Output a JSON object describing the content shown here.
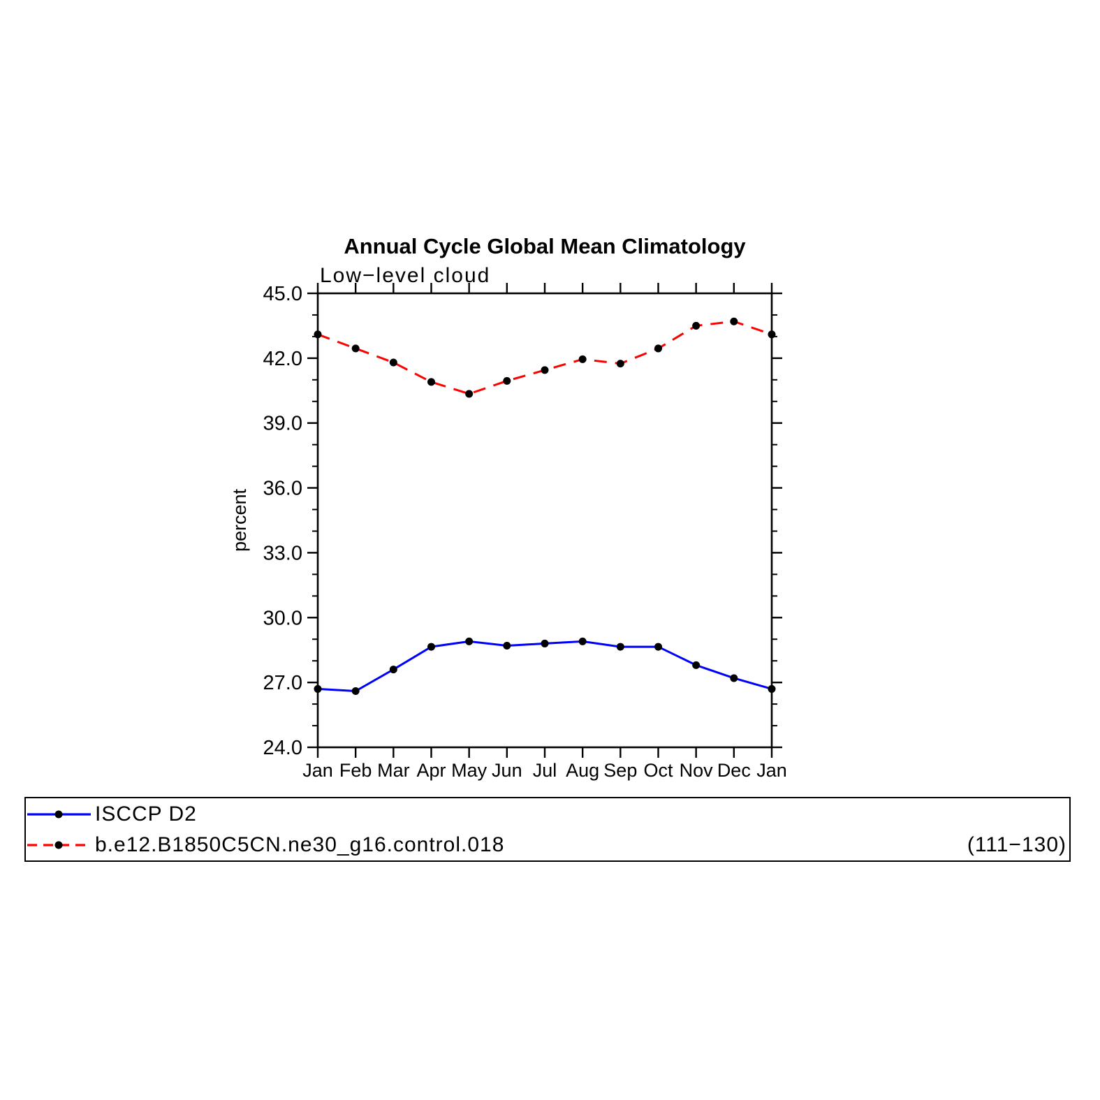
{
  "chart_data": {
    "type": "line",
    "title": "Annual Cycle Global Mean Climatology",
    "subtitle": "Low−level cloud",
    "ylabel": "percent",
    "xlabel": "",
    "categories": [
      "Jan",
      "Feb",
      "Mar",
      "Apr",
      "May",
      "Jun",
      "Jul",
      "Aug",
      "Sep",
      "Oct",
      "Nov",
      "Dec",
      "Jan"
    ],
    "ylim": [
      24.0,
      45.0
    ],
    "yticks": [
      24.0,
      27.0,
      30.0,
      33.0,
      36.0,
      39.0,
      42.0,
      45.0
    ],
    "y_minor_interval": 1.0,
    "grid": false,
    "legend_position": "bottom-box",
    "marker_color": "#000000",
    "series": [
      {
        "name": "ISCCP D2",
        "color": "#0000ff",
        "dash": "solid",
        "values": [
          26.7,
          26.6,
          27.6,
          28.65,
          28.9,
          28.7,
          28.8,
          28.9,
          28.65,
          28.65,
          27.8,
          27.2,
          26.7
        ]
      },
      {
        "name": "b.e12.B1850C5CN.ne30_g16.control.018",
        "color": "#ff0000",
        "dash": "dashed",
        "values": [
          43.1,
          42.45,
          41.8,
          40.9,
          40.35,
          40.95,
          41.45,
          41.95,
          41.75,
          42.45,
          43.5,
          43.7,
          43.1
        ]
      }
    ],
    "legend_note": "(111−130)"
  }
}
